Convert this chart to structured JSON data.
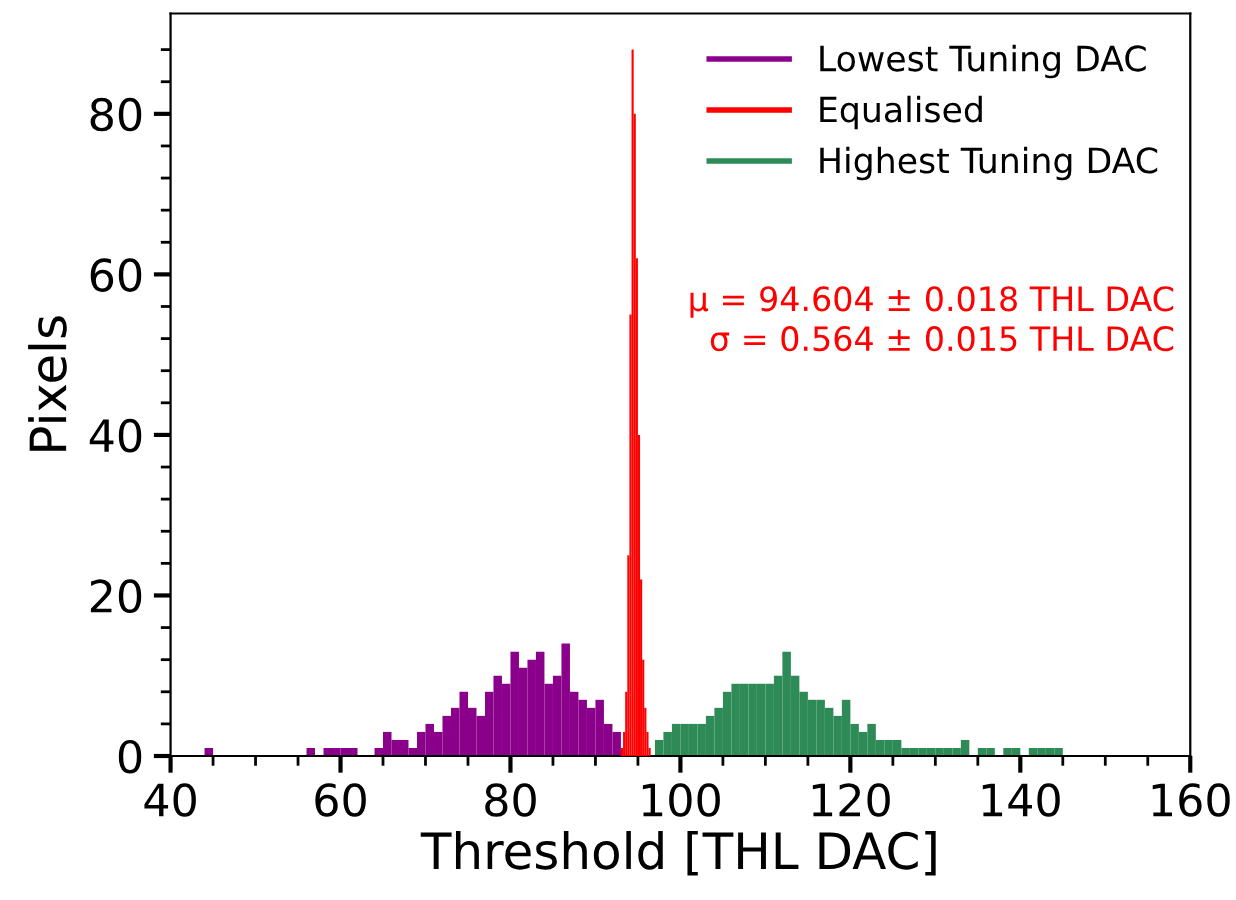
{
  "chart_data": {
    "type": "bar",
    "xlabel": "Threshold [THL DAC]",
    "ylabel": "Pixels",
    "xlim": [
      40,
      160
    ],
    "ylim": [
      0,
      92.5
    ],
    "xticks": [
      40,
      60,
      80,
      100,
      120,
      140,
      160,
      {
        "value": 45,
        "label": null
      },
      {
        "value": 50,
        "label": null
      },
      {
        "value": 55,
        "label": null
      },
      {
        "value": 65,
        "label": null
      },
      {
        "value": 70,
        "label": null
      },
      {
        "value": 75,
        "label": null
      },
      {
        "value": 85,
        "label": null
      },
      {
        "value": 90,
        "label": null
      },
      {
        "value": 95,
        "label": null
      },
      {
        "value": 105,
        "label": null
      },
      {
        "value": 110,
        "label": null
      },
      {
        "value": 115,
        "label": null
      },
      {
        "value": 125,
        "label": null
      },
      {
        "value": 130,
        "label": null
      },
      {
        "value": 135,
        "label": null
      },
      {
        "value": 145,
        "label": null
      },
      {
        "value": 150,
        "label": null
      },
      {
        "value": 155,
        "label": null
      }
    ],
    "yticks": [
      0,
      20,
      40,
      60,
      80,
      {
        "value": 4,
        "label": null
      },
      {
        "value": 8,
        "label": null
      },
      {
        "value": 12,
        "label": null
      },
      {
        "value": 16,
        "label": null
      },
      {
        "value": 24,
        "label": null
      },
      {
        "value": 28,
        "label": null
      },
      {
        "value": 32,
        "label": null
      },
      {
        "value": 36,
        "label": null
      },
      {
        "value": 44,
        "label": null
      },
      {
        "value": 48,
        "label": null
      },
      {
        "value": 52,
        "label": null
      },
      {
        "value": 56,
        "label": null
      },
      {
        "value": 64,
        "label": null
      },
      {
        "value": 68,
        "label": null
      },
      {
        "value": 72,
        "label": null
      },
      {
        "value": 76,
        "label": null
      },
      {
        "value": 84,
        "label": null
      },
      {
        "value": 88,
        "label": null
      }
    ],
    "legend": "top right",
    "grid": false,
    "annotations": [
      "μ = 94.604 ± 0.018 THL DAC\nσ = 0.564 ± 0.015 THL DAC"
    ],
    "series": [
      {
        "name": "Lowest Tuning DAC",
        "color": "#8b008b",
        "x": [
          44.5,
          45.5,
          46.5,
          47.5,
          48.5,
          49.5,
          50.5,
          51.5,
          52.5,
          53.5,
          54.5,
          55.5,
          56.5,
          57.5,
          58.5,
          59.5,
          60.5,
          61.5,
          62.5,
          63.5,
          64.5,
          65.5,
          66.5,
          67.5,
          68.5,
          69.5,
          70.5,
          71.5,
          72.5,
          73.5,
          74.5,
          75.5,
          76.5,
          77.5,
          78.5,
          79.5,
          80.5,
          81.5,
          82.5,
          83.5,
          84.5,
          85.5,
          86.5,
          87.5,
          88.5,
          89.5,
          90.5,
          91.5,
          92.5
        ],
        "values": [
          1,
          0,
          0,
          0,
          0,
          0,
          0,
          0,
          0,
          0,
          0,
          0,
          1,
          0,
          1,
          1,
          1,
          1,
          0,
          0,
          1,
          3,
          2,
          2,
          1,
          3,
          4,
          3,
          5,
          6,
          8,
          6,
          5,
          8,
          10,
          9,
          13,
          11,
          12,
          13,
          9,
          10,
          14,
          8,
          7,
          6,
          7,
          4,
          3
        ]
      },
      {
        "name": "Equalised",
        "color": "#ff0000",
        "x": [
          93.125,
          93.375,
          93.625,
          93.875,
          94.125,
          94.375,
          94.625,
          94.875,
          95.125,
          95.375,
          95.625,
          95.875,
          96.125,
          96.375
        ],
        "values": [
          1,
          3,
          8,
          25,
          55,
          88,
          80,
          62,
          40,
          22,
          12,
          6,
          3,
          1
        ]
      },
      {
        "name": "Highest Tuning DAC",
        "color": "#2e8b57",
        "x": [
          97.5,
          98.5,
          99.5,
          100.5,
          101.5,
          102.5,
          103.5,
          104.5,
          105.5,
          106.5,
          107.5,
          108.5,
          109.5,
          110.5,
          111.5,
          112.5,
          113.5,
          114.5,
          115.5,
          116.5,
          117.5,
          118.5,
          119.5,
          120.5,
          121.5,
          122.5,
          123.5,
          124.5,
          125.5,
          126.5,
          127.5,
          128.5,
          129.5,
          130.5,
          131.5,
          132.5,
          133.5,
          134.5,
          135.5,
          136.5,
          137.5,
          138.5,
          139.5,
          140.5,
          141.5,
          142.5,
          143.5,
          144.5
        ],
        "values": [
          2,
          3,
          4,
          4,
          4,
          4,
          5,
          6,
          8,
          9,
          9,
          9,
          9,
          9,
          10,
          13,
          10,
          8,
          7,
          7,
          6,
          5,
          7,
          4,
          3,
          4,
          2,
          2,
          2,
          1,
          1,
          1,
          1,
          1,
          1,
          1,
          2,
          0,
          1,
          1,
          0,
          1,
          1,
          0,
          1,
          1,
          1,
          1
        ]
      }
    ]
  }
}
